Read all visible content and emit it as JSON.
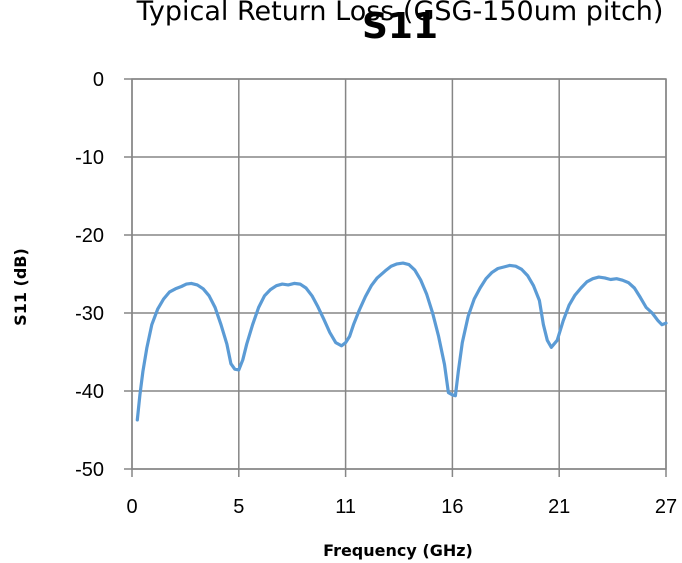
{
  "chart_data": {
    "type": "line",
    "title": "S11",
    "subtitle": "Typical Return Loss (GSG-150um pitch)",
    "xlabel": "Frequency  (GHz)",
    "ylabel": "S11 (dB)",
    "xlim": [
      0,
      27
    ],
    "ylim": [
      -50,
      0
    ],
    "x_tick_labels": [
      "0",
      "5",
      "11",
      "16",
      "21",
      "27"
    ],
    "y_ticks": [
      0,
      -10,
      -20,
      -30,
      -40,
      -50
    ],
    "grid": true,
    "legend": "none",
    "line_color": "#5b9bd5",
    "series": [
      {
        "x": [
          0.27,
          0.4,
          0.55,
          0.75,
          1.0,
          1.3,
          1.6,
          1.9,
          2.2,
          2.5,
          2.75,
          3.0,
          3.3,
          3.6,
          3.9,
          4.2,
          4.5,
          4.8,
          5.0,
          5.2,
          5.4,
          5.6,
          5.8,
          6.1,
          6.4,
          6.7,
          7.0,
          7.3,
          7.6,
          7.9,
          8.2,
          8.5,
          8.8,
          9.1,
          9.4,
          9.7,
          10.0,
          10.3,
          10.6,
          10.8,
          11.0,
          11.2,
          11.5,
          11.8,
          12.1,
          12.4,
          12.8,
          13.1,
          13.4,
          13.7,
          14.0,
          14.3,
          14.6,
          14.9,
          15.2,
          15.5,
          15.8,
          16.0,
          16.2,
          16.35,
          16.5,
          16.7,
          17.0,
          17.3,
          17.6,
          17.9,
          18.2,
          18.5,
          18.8,
          19.1,
          19.4,
          19.7,
          20.0,
          20.3,
          20.6,
          20.8,
          21.0,
          21.2,
          21.5,
          21.8,
          22.1,
          22.4,
          22.7,
          23.0,
          23.3,
          23.6,
          23.9,
          24.2,
          24.5,
          24.8,
          25.1,
          25.4,
          25.7,
          26.0,
          26.3,
          26.6,
          26.8,
          27.0
        ],
        "y": [
          -43.7,
          -40.5,
          -37.5,
          -34.5,
          -31.5,
          -29.5,
          -28.2,
          -27.3,
          -26.9,
          -26.6,
          -26.3,
          -26.2,
          -26.4,
          -26.9,
          -27.8,
          -29.3,
          -31.5,
          -34.0,
          -36.5,
          -37.2,
          -37.3,
          -36.0,
          -34.0,
          -31.5,
          -29.3,
          -27.8,
          -27.0,
          -26.5,
          -26.3,
          -26.4,
          -26.2,
          -26.3,
          -26.8,
          -27.8,
          -29.2,
          -30.8,
          -32.5,
          -33.8,
          -34.2,
          -33.8,
          -33.0,
          -31.5,
          -29.6,
          -27.9,
          -26.5,
          -25.5,
          -24.6,
          -24.0,
          -23.7,
          -23.6,
          -23.8,
          -24.5,
          -25.8,
          -27.6,
          -30.0,
          -33.0,
          -36.6,
          -40.2,
          -40.5,
          -40.6,
          -37.5,
          -33.8,
          -30.4,
          -28.2,
          -26.8,
          -25.6,
          -24.8,
          -24.3,
          -24.1,
          -23.9,
          -24.0,
          -24.4,
          -25.2,
          -26.5,
          -28.4,
          -31.5,
          -33.5,
          -34.4,
          -33.5,
          -31.0,
          -29.0,
          -27.7,
          -26.8,
          -26.0,
          -25.6,
          -25.4,
          -25.5,
          -25.7,
          -25.6,
          -25.8,
          -26.1,
          -26.8,
          -28.0,
          -29.3,
          -30.0,
          -31.0,
          -31.5,
          -31.3
        ]
      }
    ]
  }
}
